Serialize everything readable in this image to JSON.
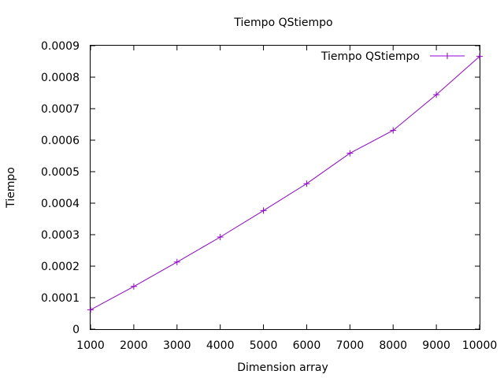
{
  "chart_data": {
    "type": "line",
    "title": "Tiempo QStiempo",
    "xlabel": "Dimension array",
    "ylabel": "Tiempo",
    "xlim": [
      1000,
      10000
    ],
    "ylim": [
      0,
      0.0009
    ],
    "x_ticks": [
      "1000",
      "2000",
      "3000",
      "4000",
      "5000",
      "6000",
      "7000",
      "8000",
      "9000",
      "10000"
    ],
    "y_ticks": [
      "0",
      "0.0001",
      "0.0002",
      "0.0003",
      "0.0004",
      "0.0005",
      "0.0006",
      "0.0007",
      "0.0008",
      "0.0009"
    ],
    "grid": false,
    "legend_position": "top-right",
    "series": [
      {
        "name": "Tiempo QStiempo",
        "color": "#9400d3",
        "marker": "+",
        "x": [
          1000,
          2000,
          3000,
          4000,
          5000,
          6000,
          7000,
          8000,
          9000,
          10000
        ],
        "y": [
          6.15e-05,
          0.0001355,
          0.000213,
          0.0002925,
          0.0003765,
          0.000462,
          0.0005585,
          0.000631,
          0.0007445,
          0.000866
        ]
      }
    ]
  }
}
